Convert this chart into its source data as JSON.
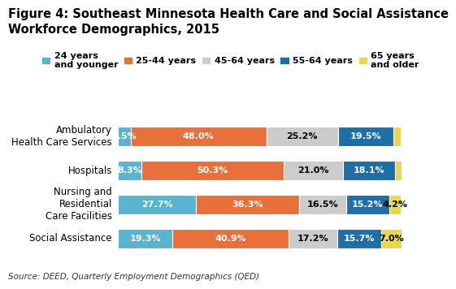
{
  "title_line1": "Figure 4: Southeast Minnesota Health Care and Social Assistance",
  "title_line2": "Workforce Demographics, 2015",
  "categories": [
    "Social Assistance",
    "Nursing and\nResidential\nCare Facilities",
    "Hospitals",
    "Ambulatory\nHealth Care Services"
  ],
  "legend_labels": [
    "24 years\nand younger",
    "25-44 years",
    "45-64 years",
    "55-64 years",
    "65 years\nand older"
  ],
  "colors": [
    "#5ab4d0",
    "#e8703a",
    "#cccccc",
    "#1e6fa8",
    "#e8d84a"
  ],
  "data": [
    [
      19.3,
      40.9,
      17.2,
      15.7,
      7.0
    ],
    [
      27.7,
      36.3,
      16.5,
      15.2,
      4.2
    ],
    [
      8.3,
      50.3,
      21.0,
      18.1,
      2.3
    ],
    [
      4.5,
      48.0,
      25.2,
      19.5,
      2.7
    ]
  ],
  "text_colors": [
    "white",
    "white",
    "black",
    "white",
    "black"
  ],
  "source": "Source: DEED, Quarterly Employment Demographics (QED)",
  "bar_height": 0.58,
  "label_fontsize": 8,
  "title_fontsize": 10.5,
  "legend_fontsize": 8,
  "source_fontsize": 7.5,
  "yticklabel_fontsize": 8.5
}
